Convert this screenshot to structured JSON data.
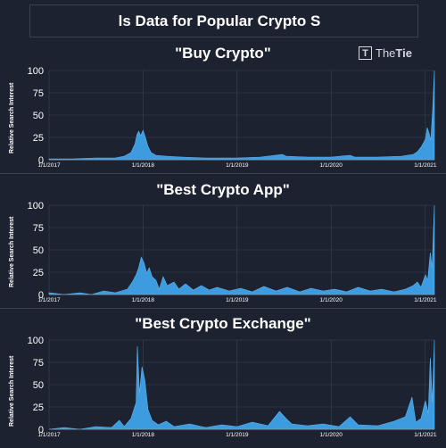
{
  "header": {
    "title": "ls Data for Popular Crypto S"
  },
  "logo": {
    "text_light": "The",
    "text_bold": "Tie"
  },
  "colors": {
    "background": "#1c2230",
    "area": "#3d9be0",
    "grid": "#3c4556",
    "text": "#ffffff"
  },
  "chart_data": [
    {
      "type": "area",
      "title": "\"Buy Crypto\"",
      "ylabel": "Relative Search Interest",
      "xticks": [
        "1/1/2017",
        "1/1/2018",
        "1/1/2019",
        "1/1/2020",
        "1/1/2021"
      ],
      "yticks": [
        0,
        25,
        50,
        75,
        100
      ],
      "ylim": [
        0,
        100
      ],
      "xrange": [
        "2017-01-01",
        "2021-02-05"
      ],
      "grid": true,
      "series": [
        {
          "points": [
            [
              "2017-01-01",
              1
            ],
            [
              "2017-04-01",
              1
            ],
            [
              "2017-07-01",
              2
            ],
            [
              "2017-09-15",
              2
            ],
            [
              "2017-10-20",
              4
            ],
            [
              "2017-11-15",
              8
            ],
            [
              "2017-12-01",
              18
            ],
            [
              "2017-12-08",
              28
            ],
            [
              "2017-12-15",
              32
            ],
            [
              "2017-12-22",
              27
            ],
            [
              "2018-01-01",
              33
            ],
            [
              "2018-01-10",
              25
            ],
            [
              "2018-01-20",
              15
            ],
            [
              "2018-02-01",
              8
            ],
            [
              "2018-02-20",
              5
            ],
            [
              "2018-04-01",
              4
            ],
            [
              "2018-06-01",
              3
            ],
            [
              "2018-09-01",
              2
            ],
            [
              "2019-01-01",
              2
            ],
            [
              "2019-04-01",
              3
            ],
            [
              "2019-06-26",
              6
            ],
            [
              "2019-07-10",
              4
            ],
            [
              "2019-10-01",
              3
            ],
            [
              "2020-01-01",
              3
            ],
            [
              "2020-03-15",
              5
            ],
            [
              "2020-04-01",
              3
            ],
            [
              "2020-07-01",
              3
            ],
            [
              "2020-10-01",
              4
            ],
            [
              "2020-11-15",
              6
            ],
            [
              "2020-12-01",
              9
            ],
            [
              "2020-12-15",
              14
            ],
            [
              "2021-01-01",
              23
            ],
            [
              "2021-01-08",
              36
            ],
            [
              "2021-01-15",
              30
            ],
            [
              "2021-01-22",
              22
            ],
            [
              "2021-01-29",
              55
            ],
            [
              "2021-02-05",
              100
            ]
          ]
        }
      ]
    },
    {
      "type": "area",
      "title": "\"Best Crypto App\"",
      "ylabel": "Relative Search Interest",
      "xticks": [
        "1/1/2017",
        "1/1/2018",
        "1/1/2019",
        "1/1/2020",
        "1/1/2021"
      ],
      "yticks": [
        0,
        25,
        50,
        75,
        100
      ],
      "ylim": [
        0,
        100
      ],
      "xrange": [
        "2017-01-01",
        "2021-02-05"
      ],
      "grid": true,
      "series": [
        {
          "points": [
            [
              "2017-01-01",
              2
            ],
            [
              "2017-03-01",
              0
            ],
            [
              "2017-05-01",
              2
            ],
            [
              "2017-06-15",
              0
            ],
            [
              "2017-08-01",
              4
            ],
            [
              "2017-09-15",
              2
            ],
            [
              "2017-11-01",
              6
            ],
            [
              "2017-11-20",
              14
            ],
            [
              "2017-12-05",
              22
            ],
            [
              "2017-12-15",
              30
            ],
            [
              "2017-12-25",
              42
            ],
            [
              "2018-01-05",
              35
            ],
            [
              "2018-01-15",
              24
            ],
            [
              "2018-01-25",
              30
            ],
            [
              "2018-02-05",
              20
            ],
            [
              "2018-02-20",
              16
            ],
            [
              "2018-03-05",
              6
            ],
            [
              "2018-03-20",
              20
            ],
            [
              "2018-04-05",
              10
            ],
            [
              "2018-05-01",
              14
            ],
            [
              "2018-05-20",
              6
            ],
            [
              "2018-06-15",
              12
            ],
            [
              "2018-07-15",
              5
            ],
            [
              "2018-08-15",
              10
            ],
            [
              "2018-09-15",
              5
            ],
            [
              "2018-10-15",
              8
            ],
            [
              "2018-12-01",
              4
            ],
            [
              "2019-01-15",
              7
            ],
            [
              "2019-03-01",
              3
            ],
            [
              "2019-04-15",
              9
            ],
            [
              "2019-06-01",
              4
            ],
            [
              "2019-07-15",
              8
            ],
            [
              "2019-09-01",
              3
            ],
            [
              "2019-10-15",
              7
            ],
            [
              "2019-12-01",
              4
            ],
            [
              "2020-01-15",
              6
            ],
            [
              "2020-03-01",
              3
            ],
            [
              "2020-04-15",
              8
            ],
            [
              "2020-06-01",
              4
            ],
            [
              "2020-07-15",
              6
            ],
            [
              "2020-09-01",
              3
            ],
            [
              "2020-10-15",
              6
            ],
            [
              "2020-11-15",
              10
            ],
            [
              "2020-12-01",
              14
            ],
            [
              "2020-12-15",
              8
            ],
            [
              "2021-01-01",
              22
            ],
            [
              "2021-01-10",
              16
            ],
            [
              "2021-01-20",
              47
            ],
            [
              "2021-01-27",
              30
            ],
            [
              "2021-02-05",
              100
            ]
          ]
        }
      ]
    },
    {
      "type": "area",
      "title": "\"Best Crypto Exchange\"",
      "ylabel": "Relative Search Interest",
      "xticks": [
        "1/1/2017",
        "1/1/2018",
        "1/1/2019",
        "1/1/2020",
        "1/1/2021"
      ],
      "yticks": [
        0,
        25,
        50,
        75,
        100
      ],
      "ylim": [
        0,
        100
      ],
      "xrange": [
        "2017-01-01",
        "2021-02-05"
      ],
      "grid": true,
      "series": [
        {
          "points": [
            [
              "2017-01-01",
              0
            ],
            [
              "2017-03-01",
              2
            ],
            [
              "2017-05-01",
              0
            ],
            [
              "2017-07-01",
              3
            ],
            [
              "2017-09-01",
              2
            ],
            [
              "2017-10-01",
              10
            ],
            [
              "2017-10-20",
              3
            ],
            [
              "2017-11-15",
              12
            ],
            [
              "2017-12-05",
              30
            ],
            [
              "2017-12-10",
              93
            ],
            [
              "2017-12-18",
              40
            ],
            [
              "2017-12-28",
              70
            ],
            [
              "2018-01-08",
              55
            ],
            [
              "2018-01-20",
              22
            ],
            [
              "2018-02-05",
              10
            ],
            [
              "2018-03-01",
              5
            ],
            [
              "2018-04-01",
              9
            ],
            [
              "2018-05-01",
              3
            ],
            [
              "2018-07-01",
              6
            ],
            [
              "2018-09-01",
              2
            ],
            [
              "2018-11-01",
              5
            ],
            [
              "2019-01-01",
              3
            ],
            [
              "2019-03-01",
              8
            ],
            [
              "2019-05-01",
              4
            ],
            [
              "2019-06-15",
              20
            ],
            [
              "2019-07-10",
              12
            ],
            [
              "2019-08-01",
              6
            ],
            [
              "2019-10-01",
              4
            ],
            [
              "2019-12-01",
              6
            ],
            [
              "2020-02-01",
              3
            ],
            [
              "2020-03-15",
              14
            ],
            [
              "2020-04-15",
              5
            ],
            [
              "2020-07-01",
              4
            ],
            [
              "2020-09-01",
              9
            ],
            [
              "2020-10-15",
              14
            ],
            [
              "2020-11-10",
              36
            ],
            [
              "2020-11-25",
              8
            ],
            [
              "2020-12-15",
              12
            ],
            [
              "2021-01-01",
              32
            ],
            [
              "2021-01-12",
              18
            ],
            [
              "2021-01-20",
              80
            ],
            [
              "2021-01-28",
              30
            ],
            [
              "2021-02-05",
              100
            ]
          ]
        }
      ]
    }
  ]
}
